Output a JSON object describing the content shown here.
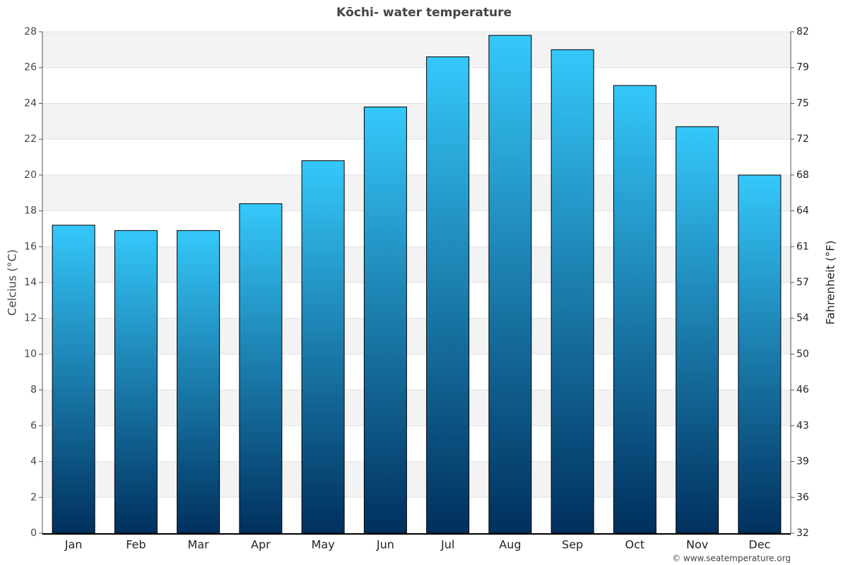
{
  "chart_data": {
    "type": "bar",
    "title": "Kōchi- water temperature",
    "y_label": "Celcius (°C)",
    "y2_label": "Fahrenheit (°F)",
    "credit": "© www.seatemperature.org",
    "categories": [
      "Jan",
      "Feb",
      "Mar",
      "Apr",
      "May",
      "Jun",
      "Jul",
      "Aug",
      "Sep",
      "Oct",
      "Nov",
      "Dec"
    ],
    "values": [
      17.2,
      16.9,
      16.9,
      18.4,
      20.8,
      23.8,
      26.6,
      27.8,
      27.0,
      25.0,
      22.7,
      20.0
    ],
    "color": [
      "#35c8fa",
      "#00305e"
    ],
    "ylim": [
      0,
      28
    ],
    "yticks": [
      0,
      2,
      4,
      6,
      8,
      10,
      12,
      14,
      16,
      18,
      20,
      22,
      24,
      26,
      28
    ],
    "y2lim": [
      32,
      82.4
    ],
    "y2ticks": [
      32,
      {
        "value": 35.6,
        "label": "36"
      },
      {
        "value": 39.2,
        "label": "39"
      },
      {
        "value": 42.8,
        "label": "43"
      },
      {
        "value": 46.4,
        "label": "46"
      },
      50,
      {
        "value": 53.6,
        "label": "54"
      },
      {
        "value": 57.2,
        "label": "57"
      },
      {
        "value": 60.8,
        "label": "61"
      },
      {
        "value": 64.4,
        "label": "64"
      },
      68,
      {
        "value": 71.6,
        "label": "72"
      },
      {
        "value": 75.2,
        "label": "75"
      },
      {
        "value": 78.8,
        "label": "79"
      },
      {
        "value": 82.4,
        "label": "82"
      }
    ],
    "grid": true
  }
}
